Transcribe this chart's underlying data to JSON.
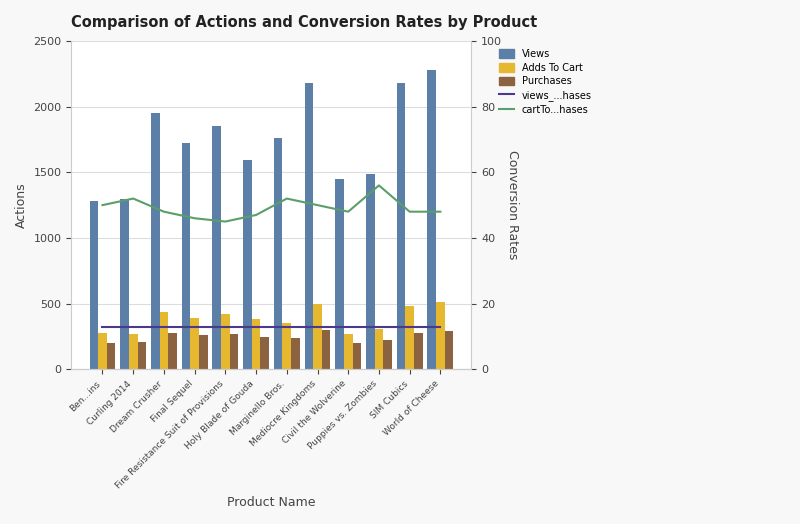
{
  "title": "Comparison of Actions and Conversion Rates by Product",
  "xlabel": "Product Name",
  "ylabel_left": "Actions",
  "ylabel_right": "Conversion Rates",
  "products": [
    "Ben...ins",
    "Curling 2014",
    "Dream Crusher",
    "Final Sequel",
    "Fire Resistance Suit of Provisions",
    "Holy Blade of Gouda",
    "Marginello Bros.",
    "Mediocre Kingdoms",
    "Civil the Wolverine",
    "Puppies vs. Zombies",
    "SIM Cubics",
    "World of Cheese"
  ],
  "views": [
    1280,
    1300,
    1950,
    1720,
    1850,
    1590,
    1760,
    2180,
    1450,
    1490,
    2180,
    2280
  ],
  "adds_to_cart": [
    280,
    270,
    440,
    390,
    420,
    380,
    350,
    500,
    270,
    310,
    480,
    510
  ],
  "purchases": [
    200,
    210,
    280,
    260,
    270,
    250,
    240,
    300,
    200,
    220,
    280,
    290
  ],
  "views_hases": [
    13,
    13,
    13,
    13,
    13,
    13,
    13,
    13,
    13,
    13,
    13,
    13
  ],
  "cart_to_hases": [
    50,
    52,
    48,
    46,
    45,
    47,
    52,
    50,
    48,
    56,
    48,
    48
  ],
  "views_color": "#5b7fa6",
  "adds_color": "#e6b830",
  "purchases_color": "#8b6340",
  "views_hases_color": "#4b3a8c",
  "cart_hases_color": "#5a9e6a",
  "ylim_left": [
    0,
    2500
  ],
  "ylim_right": [
    0,
    100
  ],
  "yticks_left": [
    0,
    500,
    1000,
    1500,
    2000,
    2500
  ],
  "yticks_right": [
    0,
    20,
    40,
    60,
    80,
    100
  ],
  "background_color": "#f8f8f8",
  "panel_color": "#ffffff",
  "grid_color": "#dddddd"
}
